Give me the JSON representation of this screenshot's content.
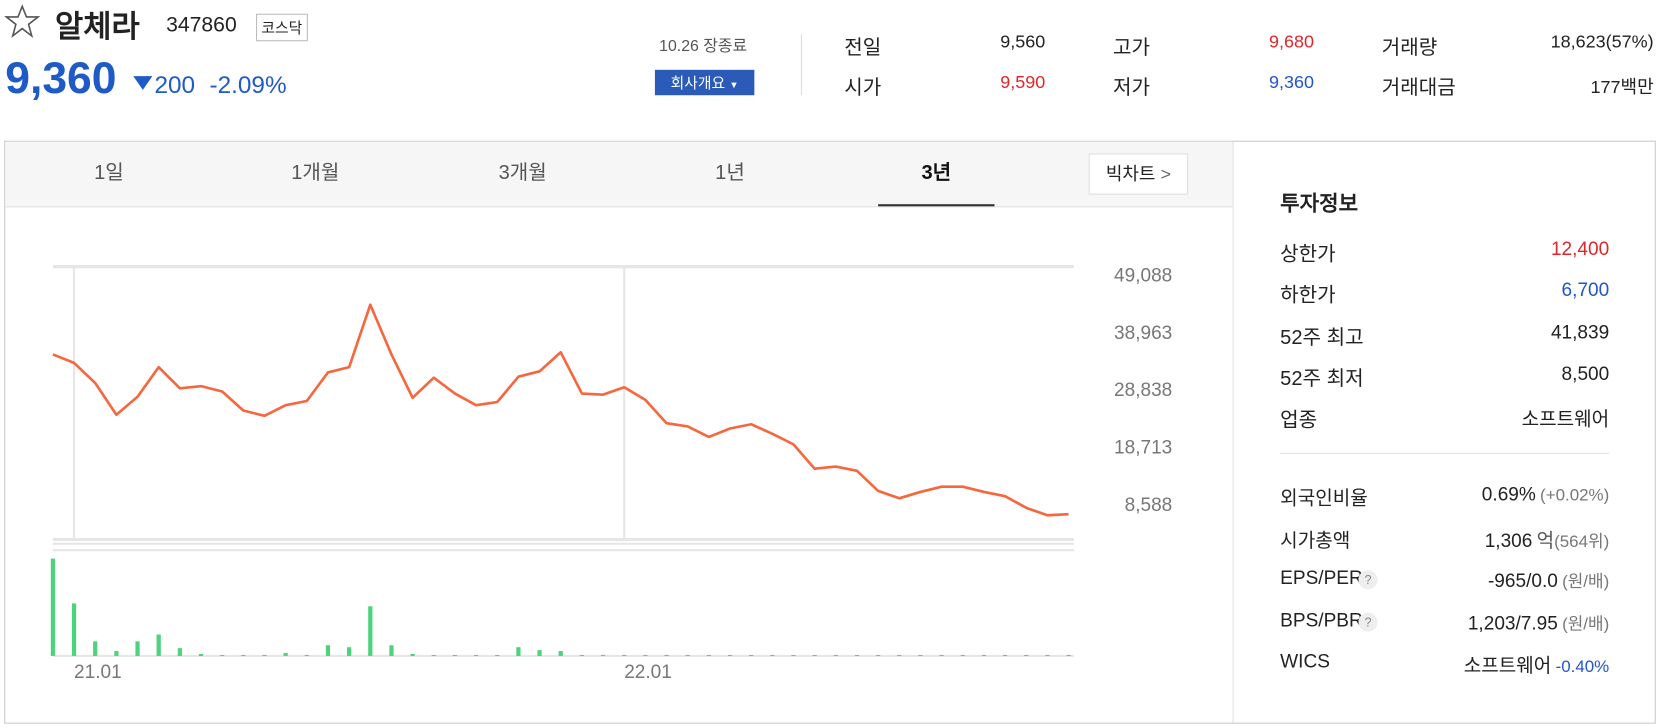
{
  "header": {
    "title": "알체라",
    "code": "347860",
    "market": "코스닥",
    "price": "9,360",
    "change": "200",
    "change_pct": "-2.09%",
    "color": "#1e5bc6",
    "status": "10.26 장종료",
    "company_button": "회사개요"
  },
  "quotes": [
    {
      "label": "전일",
      "value": "9,560",
      "color": "#222222"
    },
    {
      "label": "시가",
      "value": "9,590",
      "color": "#e0262a"
    },
    {
      "label": "고가",
      "value": "9,680",
      "color": "#e0262a"
    },
    {
      "label": "저가",
      "value": "9,360",
      "color": "#2255cc"
    },
    {
      "label": "거래량",
      "value": "18,623(57%)",
      "color": "#222222"
    },
    {
      "label": "거래대금",
      "value": "177백만",
      "color": "#222222"
    }
  ],
  "tabs": {
    "items": [
      "1일",
      "1개월",
      "3개월",
      "1년",
      "3년"
    ],
    "active": 4,
    "big_chart": "빅차트"
  },
  "chart_data": [
    {
      "type": "line",
      "color": "#f5683f",
      "categories": [
        null,
        "21.01",
        null,
        null,
        null,
        null,
        null,
        null,
        null,
        null,
        null,
        null,
        null,
        null,
        null,
        null,
        null,
        null,
        null,
        null,
        null,
        null,
        null,
        null,
        null,
        null,
        null,
        "22.01",
        null,
        null,
        null,
        null,
        null,
        null,
        null,
        null,
        null,
        null,
        null,
        null,
        null,
        null,
        null,
        null,
        null,
        null,
        null,
        null,
        null
      ],
      "values": [
        35090,
        33600,
        30050,
        24460,
        27630,
        32850,
        29120,
        29500,
        28560,
        25200,
        24270,
        26140,
        26880,
        31920,
        32850,
        43860,
        35090,
        27440,
        30990,
        28190,
        26140,
        26700,
        31170,
        32110,
        35470,
        28190,
        28000,
        29310,
        27070,
        22960,
        22400,
        20540,
        22030,
        22780,
        21100,
        19230,
        14940,
        15310,
        14570,
        11020,
        9720,
        10840,
        11770,
        11770,
        10840,
        10090,
        8040,
        6730,
        6920
      ],
      "ylim": [
        2440,
        50580
      ],
      "yticks": [
        {
          "value": 49088,
          "label": "49,088"
        },
        {
          "value": 38963,
          "label": "38,963"
        },
        {
          "value": 28838,
          "label": "28,838"
        },
        {
          "value": 18713,
          "label": "18,713"
        },
        {
          "value": 8588,
          "label": "8,588"
        }
      ]
    },
    {
      "type": "bar",
      "color": "#4cd37b",
      "ylim": [
        0,
        100
      ],
      "values": [
        100,
        54,
        15,
        5,
        15,
        22,
        8,
        2,
        1,
        1,
        1,
        3,
        1,
        11,
        9,
        51,
        11,
        2,
        1,
        1,
        1,
        1,
        9,
        6,
        5,
        1,
        1,
        1,
        1,
        1,
        1,
        1,
        1,
        1,
        1,
        1,
        1,
        1,
        1,
        1,
        1,
        1,
        1,
        1,
        1,
        1,
        1,
        1,
        1
      ]
    }
  ],
  "invest_info": {
    "title": "투자정보",
    "rows": [
      {
        "label": "상한가",
        "value": "12,400",
        "color": "#e0262a"
      },
      {
        "label": "하한가",
        "value": "6,700",
        "color": "#2255cc"
      },
      {
        "label": "52주 최고",
        "value": "41,839",
        "color": "#222222"
      },
      {
        "label": "52주 최저",
        "value": "8,500",
        "color": "#222222"
      },
      {
        "label": "업종",
        "value": "소프트웨어",
        "color": "#222222"
      }
    ],
    "rows2": [
      {
        "label": "외국인비율",
        "value": "0.69%",
        "note": "(+0.02%)"
      },
      {
        "label": "시가총액",
        "value": "1,306",
        "unit": "억",
        "note": "(564위)"
      },
      {
        "label": "EPS/PER",
        "help": "?",
        "value": "-965/0.0",
        "note": "(원/배)"
      },
      {
        "label": "BPS/PBR",
        "help": "?",
        "value": "1,203/7.95",
        "note": "(원/배)"
      },
      {
        "label": "WICS",
        "value": "소프트웨어",
        "note": "-0.40%",
        "note_color": "#2255cc"
      }
    ]
  }
}
